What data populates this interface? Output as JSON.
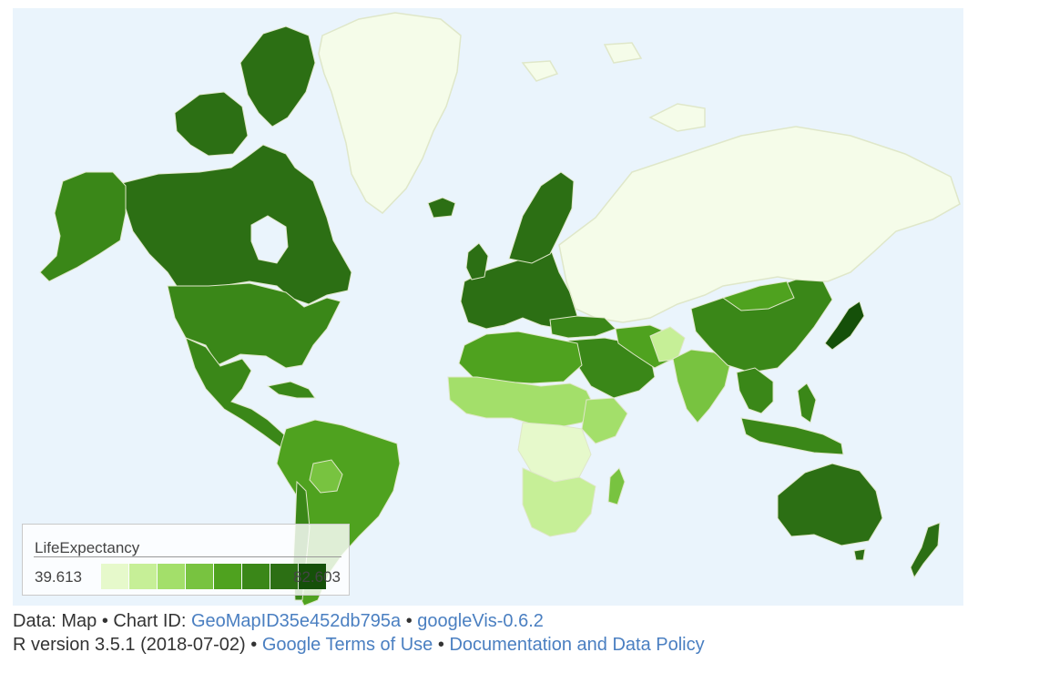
{
  "colors": {
    "ocean": "#eaf4fc",
    "no_data": "#f5fce9",
    "border": "#dfe7c9",
    "scale": [
      "#e6f9cb",
      "#c6ef97",
      "#a3df6a",
      "#78c340",
      "#4fa21f",
      "#3a8718",
      "#2c6f14",
      "#155009"
    ]
  },
  "legend": {
    "title": "LifeExpectancy",
    "min": "39.613",
    "max": "82.603"
  },
  "footer": {
    "line1_prefix": "Data: Map • Chart ID: ",
    "chart_id_link": "GeoMapID35e452db795a",
    "sep1": " • ",
    "version_link": "googleVis-0.6.2",
    "line2_prefix": "R version 3.5.1 (2018-07-02) • ",
    "terms_link": "Google Terms of Use",
    "sep2": " • ",
    "docs_link": "Documentation and Data Policy"
  }
}
